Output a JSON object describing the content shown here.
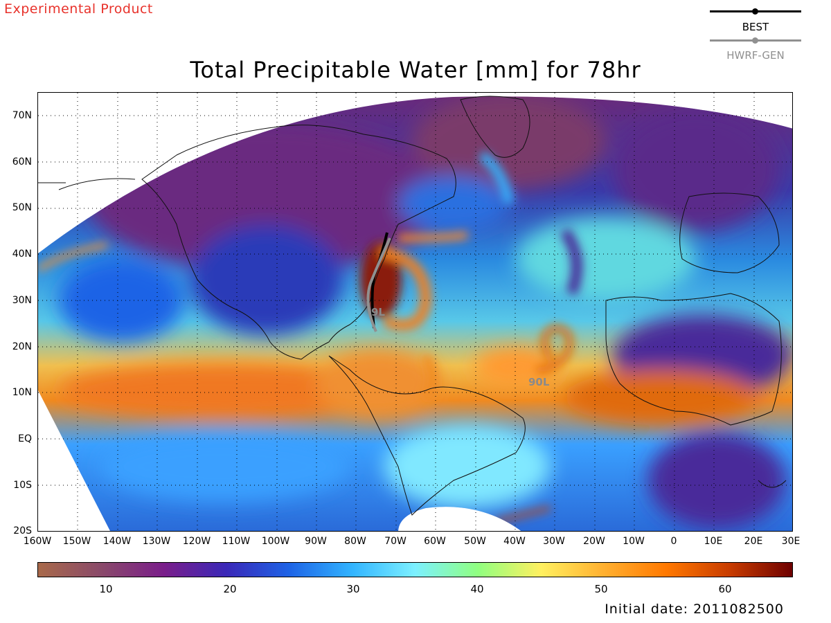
{
  "header": {
    "experimental_label": "Experimental Product",
    "title": "Total Precipitable Water [mm] for 78hr"
  },
  "legend": {
    "best_label": "BEST",
    "best_color": "#000000",
    "gen_label": "HWRF-GEN",
    "gen_color": "#909090"
  },
  "map": {
    "lat_labels": [
      "70N",
      "60N",
      "50N",
      "40N",
      "30N",
      "20N",
      "10N",
      "EQ",
      "10S",
      "20S"
    ],
    "lon_labels": [
      "160W",
      "150W",
      "140W",
      "130W",
      "120W",
      "110W",
      "100W",
      "90W",
      "80W",
      "70W",
      "60W",
      "50W",
      "40W",
      "30W",
      "20W",
      "10W",
      "0",
      "10E",
      "20E",
      "30E"
    ],
    "storms": [
      {
        "label": "9L",
        "color": "#8a8a8a"
      },
      {
        "label": "90L",
        "color": "#8a8a8a"
      }
    ]
  },
  "colorbar": {
    "ticks": [
      "10",
      "20",
      "30",
      "40",
      "50",
      "60"
    ],
    "colors": [
      "#a8694a",
      "#8a4a6a",
      "#7a1e8a",
      "#3a28b8",
      "#1e64e6",
      "#32b4ff",
      "#7cf0ff",
      "#90ff80",
      "#fff060",
      "#ffb030",
      "#ff7800",
      "#c83c00",
      "#6e0000"
    ]
  },
  "footer": {
    "initial_date": "Initial date: 2011082500"
  }
}
